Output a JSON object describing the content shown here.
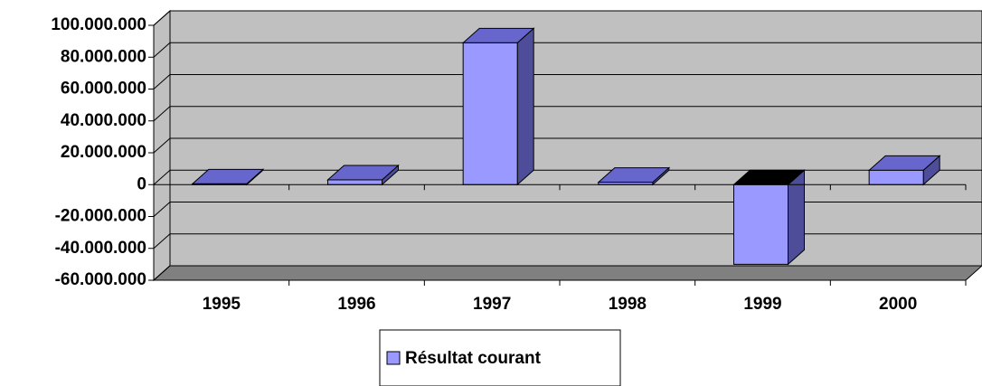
{
  "chart_data": {
    "type": "bar3d",
    "categories": [
      "1995",
      "1996",
      "1997",
      "1998",
      "1999",
      "2000"
    ],
    "series": [
      {
        "name": "Résultat courant",
        "color": "#9999ff",
        "values": [
          500000,
          3000000,
          89000000,
          1500000,
          -50000000,
          9000000
        ]
      }
    ],
    "ylim": [
      -60000000,
      100000000
    ],
    "yticks": [
      {
        "value": -60000000,
        "label": "-60.000.000"
      },
      {
        "value": -40000000,
        "label": "-40.000.000"
      },
      {
        "value": -20000000,
        "label": "-20.000.000"
      },
      0,
      {
        "value": 20000000,
        "label": "20.000.000"
      },
      {
        "value": 40000000,
        "label": "40.000.000"
      },
      {
        "value": 60000000,
        "label": "60.000.000"
      },
      {
        "value": 80000000,
        "label": "80.000.000"
      },
      {
        "value": 100000000,
        "label": "100.000.000"
      }
    ],
    "grid": true,
    "legend": "bottom"
  }
}
